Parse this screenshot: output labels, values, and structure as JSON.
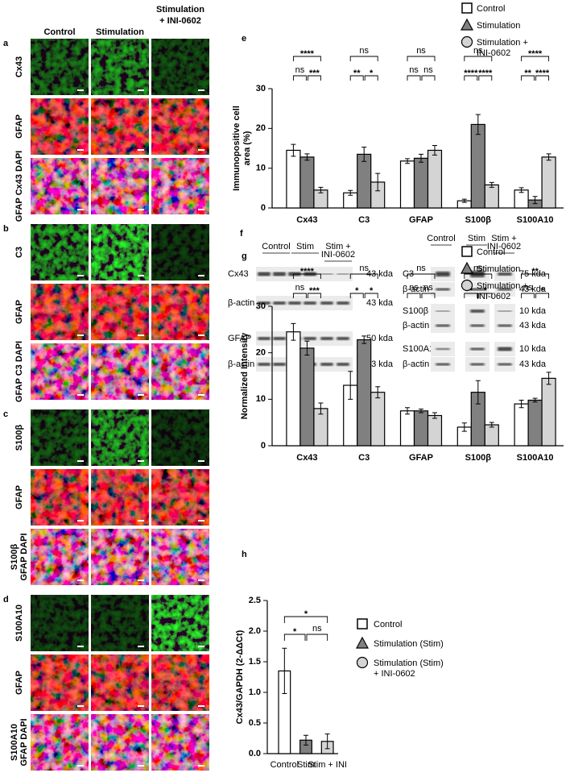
{
  "microscopy": {
    "columns": [
      "Control",
      "Stimulation",
      "Stimulation + INI-0602"
    ],
    "panels": [
      {
        "letter": "a",
        "rows": [
          "Cx43",
          "GFAP",
          "GFAP Cx43 DAPI"
        ]
      },
      {
        "letter": "b",
        "rows": [
          "C3",
          "GFAP",
          "GFAP C3 DAPI"
        ]
      },
      {
        "letter": "c",
        "rows": [
          "S100β",
          "GFAP",
          "S100β GFAP DAPI"
        ]
      },
      {
        "letter": "d",
        "rows": [
          "S100A10",
          "GFAP",
          "S100A10 GFAP DAPI"
        ]
      }
    ]
  },
  "blots": {
    "letter": "f",
    "left": {
      "groups": [
        "Control",
        "Stim",
        "Stim + INI-0602"
      ],
      "rows": [
        {
          "label": "Cx43",
          "size": "43 kda"
        },
        {
          "label": "β-actin",
          "size": "43 kda"
        },
        {
          "label": "GFAP",
          "size": "50 kda"
        },
        {
          "label": "β-actin",
          "size": "43 kda"
        }
      ]
    },
    "right": {
      "groups": [
        "Control",
        "Stim",
        "Stim + INI-0602"
      ],
      "rows": [
        {
          "label": "C3",
          "size": "75 kda"
        },
        {
          "label": "β-actin",
          "size": "43 kda"
        },
        {
          "label": "S100β",
          "size": "10 kda"
        },
        {
          "label": "β-actin",
          "size": "43 kda"
        },
        {
          "label": "S100A10",
          "size": "10 kda"
        },
        {
          "label": "β-actin",
          "size": "43 kda"
        }
      ]
    }
  },
  "chart_data": [
    {
      "type": "bar",
      "panel": "e",
      "y_label": "Immunopositive cell area (%)",
      "categories": [
        "Cx43",
        "C3",
        "GFAP",
        "S100β",
        "S100A10"
      ],
      "series": [
        {
          "name": "Control",
          "color": "#ffffff",
          "values": [
            14.5,
            3.8,
            11.8,
            1.8,
            4.5
          ],
          "errors": [
            1.5,
            0.6,
            0.6,
            0.4,
            0.6
          ]
        },
        {
          "name": "Stimulation",
          "color": "#808080",
          "values": [
            12.8,
            13.5,
            12.5,
            21,
            2
          ],
          "errors": [
            0.8,
            1.8,
            1,
            2.5,
            0.9
          ]
        },
        {
          "name": "Stimulation + INI-0602",
          "color": "#d4d4d4",
          "values": [
            4.5,
            6.5,
            14.5,
            5.8,
            12.8
          ],
          "errors": [
            0.7,
            2.2,
            1.2,
            0.6,
            0.8
          ]
        }
      ],
      "significance": [
        [
          "****",
          "ns",
          "***"
        ],
        [
          "ns",
          "**",
          "*"
        ],
        [
          "ns",
          "ns",
          "ns"
        ],
        [
          "ns",
          "****",
          "****"
        ],
        [
          "****",
          "**",
          "****"
        ]
      ],
      "ylim": [
        0,
        30
      ],
      "yticks": [
        0,
        10,
        20,
        30
      ]
    },
    {
      "type": "bar",
      "panel": "g",
      "y_label": "Normalized Intensity",
      "categories": [
        "Cx43",
        "C3",
        "GFAP",
        "S100β",
        "S100A10"
      ],
      "series": [
        {
          "name": "Control",
          "color": "#ffffff",
          "values": [
            24.5,
            13,
            7.5,
            4,
            9
          ],
          "errors": [
            1.8,
            3,
            0.7,
            0.9,
            0.8
          ]
        },
        {
          "name": "Stimulation",
          "color": "#808080",
          "values": [
            21,
            22.8,
            7.5,
            11.5,
            9.8
          ],
          "errors": [
            1.5,
            0.8,
            0.4,
            2.5,
            0.4
          ]
        },
        {
          "name": "Stimulation + INI-0602",
          "color": "#d4d4d4",
          "values": [
            8,
            11.5,
            6.5,
            4.5,
            14.5
          ],
          "errors": [
            1.2,
            1.2,
            0.6,
            0.5,
            1.3
          ]
        }
      ],
      "significance": [
        [
          "****",
          "ns",
          "***"
        ],
        [
          "ns",
          "*",
          "*"
        ],
        [
          "ns",
          "ns",
          "ns"
        ],
        [
          "ns",
          "*",
          "*"
        ],
        [
          "**",
          "ns",
          "*"
        ]
      ],
      "ylim": [
        0,
        30
      ],
      "yticks": [
        0,
        10,
        20,
        30
      ]
    },
    {
      "type": "bar",
      "panel": "h",
      "y_label": "Cx43/GAPDH (2-ΔΔCt)",
      "categories": [
        "Control",
        "Stim",
        "Stim + INI"
      ],
      "values": [
        1.35,
        0.22,
        0.2
      ],
      "errors": [
        0.37,
        0.08,
        0.12
      ],
      "colors": [
        "#ffffff",
        "#808080",
        "#d4d4d4"
      ],
      "legend": [
        "Control",
        "Stimulation (Stim)",
        "Stimulation (Stim) + INI-0602"
      ],
      "significance": [
        "*",
        "*",
        "ns"
      ],
      "ylim": [
        0,
        2.5
      ],
      "yticks": [
        {
          "value": 0,
          "label": "0.0"
        },
        {
          "value": 0.5,
          "label": "0.5"
        },
        {
          "value": 1,
          "label": "1.0"
        },
        {
          "value": 1.5,
          "label": "1.5"
        },
        {
          "value": 2,
          "label": "2.0"
        },
        {
          "value": 2.5,
          "label": "2.5"
        }
      ]
    }
  ]
}
